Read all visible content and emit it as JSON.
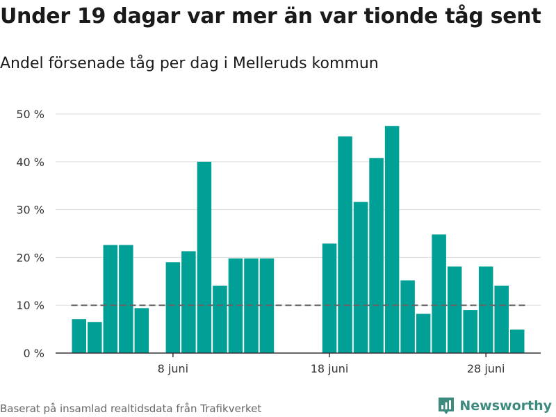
{
  "title": "Under 19 dagar var mer än var tionde tåg sent",
  "subtitle": "Andel försenade tåg per dag i Melleruds kommun",
  "footer": "Baserat på insamlad realtidsdata från Trafikverket",
  "brand": "Newsworthy",
  "colors": {
    "bar": "#00a096",
    "grid": "#dddddd",
    "axis": "#333333",
    "reference_line": "#666666",
    "brand": "#3d8a7e"
  },
  "chart_data": {
    "type": "bar",
    "x": [
      2,
      3,
      4,
      5,
      6,
      8,
      9,
      10,
      11,
      12,
      13,
      14,
      18,
      19,
      20,
      21,
      22,
      23,
      24,
      25,
      26,
      27,
      28,
      29,
      30
    ],
    "values": [
      7.1,
      6.5,
      22.6,
      22.6,
      9.4,
      19.0,
      21.3,
      40.0,
      14.1,
      19.8,
      19.8,
      19.8,
      22.9,
      45.3,
      31.6,
      40.8,
      47.5,
      15.2,
      8.2,
      24.8,
      18.1,
      9.0,
      18.1,
      14.1,
      4.9
    ],
    "x_unit": "day in June",
    "xticks": [
      {
        "value": 8,
        "label": "8 juni"
      },
      {
        "value": 18,
        "label": "18 juni"
      },
      {
        "value": 28,
        "label": "28 juni"
      }
    ],
    "yticks": [
      {
        "value": 0,
        "label": "0 %"
      },
      {
        "value": 10,
        "label": "10 %"
      },
      {
        "value": 20,
        "label": "20 %"
      },
      {
        "value": 30,
        "label": "30 %"
      },
      {
        "value": 40,
        "label": "40 %"
      },
      {
        "value": 50,
        "label": "50 %"
      }
    ],
    "ylim": [
      0,
      50
    ],
    "xlim": [
      0.5,
      31.5
    ],
    "reference_line": {
      "value": 10,
      "style": "dashed",
      "from": 2,
      "to": 31
    },
    "grid": true,
    "xlabel": "",
    "ylabel": ""
  }
}
